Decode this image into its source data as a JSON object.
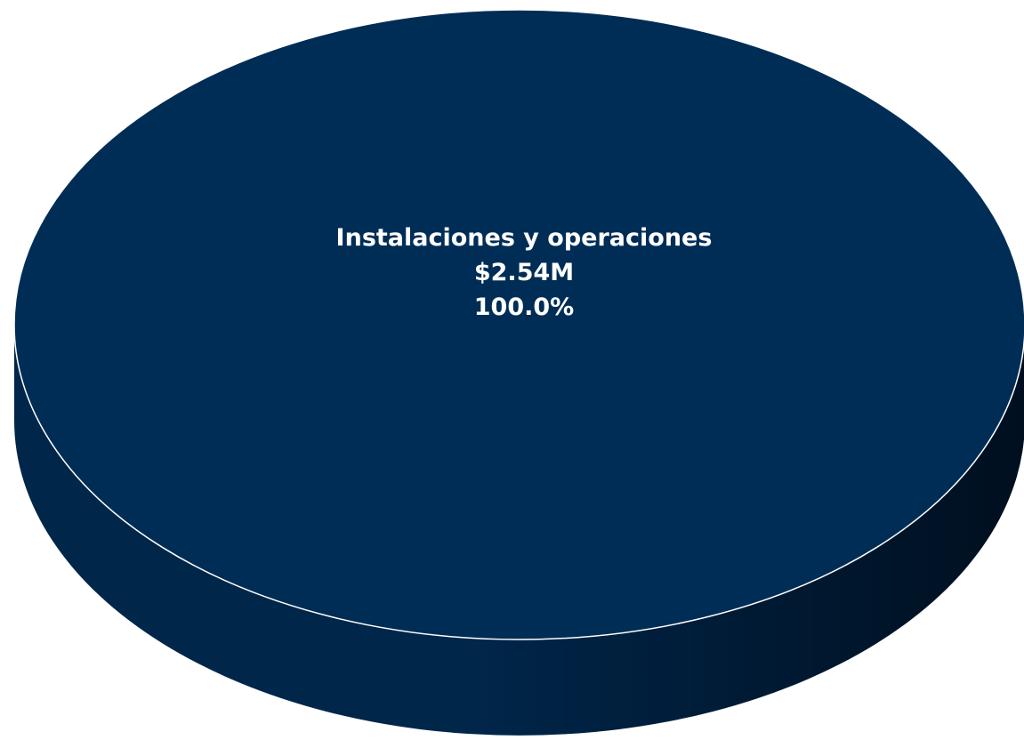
{
  "chart_data": {
    "type": "pie",
    "style": "3d",
    "slices": [
      {
        "label": "Instalaciones y operaciones",
        "value_label": "$2.54M",
        "value": 2.54,
        "percent": 100.0,
        "percent_label": "100.0%",
        "color": "#002d55"
      }
    ],
    "title": "",
    "legend": "none"
  },
  "colors": {
    "top_face": "#002d55",
    "side_light": "#00264a",
    "side_dark": "#000f1f",
    "edge": "#ffffff",
    "label_text": "#ffffff"
  }
}
